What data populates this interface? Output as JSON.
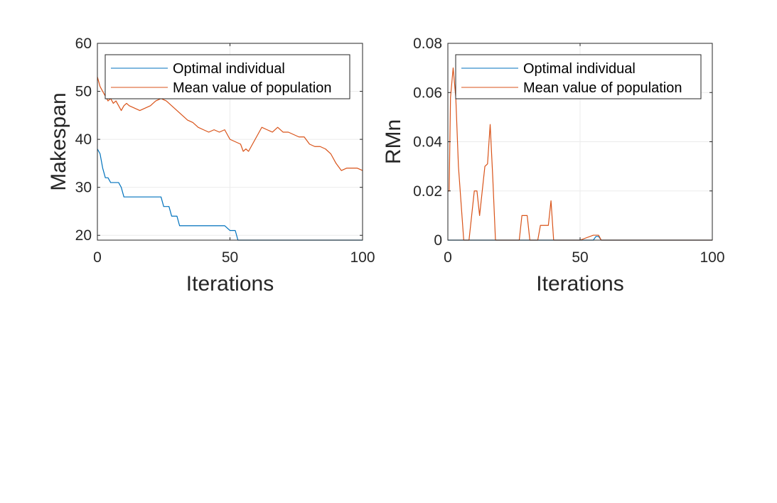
{
  "colors": {
    "series_blue": "#0072BD",
    "series_orange": "#D95319",
    "axis": "#262626",
    "grid": "#ebebeb"
  },
  "chart_data": [
    {
      "type": "line",
      "title": "",
      "xlabel": "Iterations",
      "ylabel": "Makespan",
      "xlim": [
        0,
        100
      ],
      "ylim": [
        19,
        60
      ],
      "xticks": [
        0,
        50,
        100
      ],
      "yticks": [
        20,
        30,
        40,
        50,
        60
      ],
      "grid": true,
      "legend_location": "top-right",
      "series": [
        {
          "name": "Optimal individual",
          "color": "#0072BD",
          "x": [
            0,
            1,
            2,
            3,
            4,
            5,
            7,
            8,
            9,
            10,
            15,
            20,
            24,
            25,
            27,
            28,
            30,
            31,
            35,
            40,
            45,
            48,
            50,
            51,
            52,
            53,
            60,
            70,
            80,
            90,
            100
          ],
          "y": [
            38,
            37,
            34,
            32,
            32,
            31,
            31,
            31,
            30,
            28,
            28,
            28,
            28,
            26,
            26,
            24,
            24,
            22,
            22,
            22,
            22,
            22,
            21,
            21,
            21,
            19,
            19,
            19,
            19,
            19,
            19
          ]
        },
        {
          "name": "Mean value of population",
          "color": "#D95319",
          "x": [
            0,
            1,
            2,
            3,
            4,
            5,
            6,
            7,
            8,
            9,
            10,
            11,
            12,
            14,
            16,
            18,
            20,
            22,
            24,
            26,
            28,
            30,
            32,
            34,
            36,
            38,
            40,
            42,
            44,
            46,
            48,
            50,
            52,
            54,
            55,
            56,
            57,
            58,
            60,
            62,
            64,
            66,
            68,
            70,
            72,
            74,
            76,
            78,
            80,
            82,
            84,
            86,
            88,
            90,
            92,
            94,
            96,
            98,
            100
          ],
          "y": [
            53,
            51,
            50,
            49,
            48,
            48.5,
            47.5,
            48,
            47,
            46,
            47,
            47.5,
            47,
            46.5,
            46,
            46.5,
            47,
            48,
            48.5,
            48,
            47,
            46,
            45,
            44,
            43.5,
            42.5,
            42,
            41.5,
            42,
            41.5,
            42,
            40,
            39.5,
            39,
            37.5,
            38,
            37.5,
            38.5,
            40.5,
            42.5,
            42,
            41.5,
            42.5,
            41.5,
            41.5,
            41,
            40.5,
            40.5,
            39,
            38.5,
            38.5,
            38,
            37,
            35,
            33.5,
            34,
            34,
            34,
            33.5
          ]
        }
      ]
    },
    {
      "type": "line",
      "title": "",
      "xlabel": "Iterations",
      "ylabel": "RMn",
      "xlim": [
        0,
        100
      ],
      "ylim": [
        0,
        0.08
      ],
      "xticks": [
        0,
        50,
        100
      ],
      "yticks": [
        0,
        0.02,
        0.04,
        0.06,
        0.08
      ],
      "grid": true,
      "legend_location": "top-right",
      "series": [
        {
          "name": "Optimal individual",
          "color": "#0072BD",
          "x": [
            0,
            10,
            20,
            30,
            40,
            50,
            55,
            56,
            57,
            58,
            60,
            70,
            80,
            90,
            100
          ],
          "y": [
            0,
            0,
            0,
            0,
            0,
            0,
            0,
            0.0015,
            0.0015,
            0,
            0,
            0,
            0,
            0,
            0
          ]
        },
        {
          "name": "Mean value of population",
          "color": "#D95319",
          "x": [
            0,
            0.5,
            1,
            2,
            3,
            4,
            5,
            6,
            7,
            8,
            9,
            10,
            11,
            12,
            13,
            14,
            15,
            16,
            17,
            18,
            20,
            25,
            27,
            28,
            29,
            30,
            31,
            32,
            34,
            35,
            36,
            37,
            38,
            39,
            40,
            45,
            50,
            55,
            56,
            57,
            58,
            60,
            70,
            80,
            90,
            100
          ],
          "y": [
            0.02,
            0.02,
            0.058,
            0.07,
            0.058,
            0.03,
            0.015,
            0,
            0,
            0,
            0.01,
            0.02,
            0.02,
            0.01,
            0.02,
            0.03,
            0.031,
            0.047,
            0.025,
            0,
            0,
            0,
            0,
            0.01,
            0.01,
            0.01,
            0,
            0,
            0,
            0.006,
            0.006,
            0.006,
            0.006,
            0.016,
            0,
            0,
            0,
            0.002,
            0.002,
            0.002,
            0,
            0,
            0,
            0,
            0,
            0
          ]
        }
      ]
    }
  ]
}
